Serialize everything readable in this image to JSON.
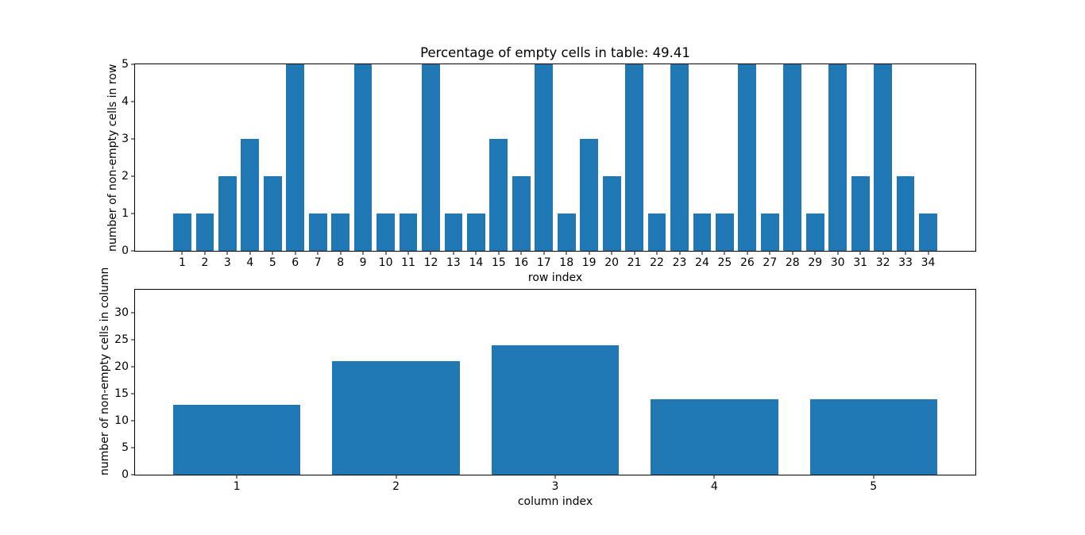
{
  "figure": {
    "background": "#ffffff",
    "text_color": "#000000"
  },
  "chart_data": [
    {
      "type": "bar",
      "title": "Percentage of empty cells in table: 49.41",
      "xlabel": "row index",
      "ylabel": "number of non-empty cells in row",
      "categories": [
        1,
        2,
        3,
        4,
        5,
        6,
        7,
        8,
        9,
        10,
        11,
        12,
        13,
        14,
        15,
        16,
        17,
        18,
        19,
        20,
        21,
        22,
        23,
        24,
        25,
        26,
        27,
        28,
        29,
        30,
        31,
        32,
        33,
        34
      ],
      "values": [
        1,
        1,
        2,
        3,
        2,
        5,
        1,
        1,
        5,
        1,
        1,
        5,
        1,
        1,
        3,
        2,
        5,
        1,
        3,
        2,
        5,
        1,
        5,
        1,
        1,
        5,
        1,
        5,
        1,
        5,
        2,
        5,
        2,
        1
      ],
      "ylim": [
        0,
        5
      ],
      "yticks": [
        0,
        1,
        2,
        3,
        4,
        5
      ],
      "bar_color": "#1f77b4",
      "bar_width": 0.8,
      "grid": false,
      "legend": "none"
    },
    {
      "type": "bar",
      "title": "",
      "xlabel": "column index",
      "ylabel": "number of non-empty cells in column",
      "categories": [
        1,
        2,
        3,
        4,
        5
      ],
      "values": [
        13,
        21,
        24,
        14,
        14
      ],
      "ylim": [
        0,
        34.3
      ],
      "yticks": [
        0,
        5,
        10,
        15,
        20,
        25,
        30
      ],
      "bar_color": "#1f77b4",
      "bar_width": 0.8,
      "grid": false,
      "legend": "none"
    }
  ]
}
